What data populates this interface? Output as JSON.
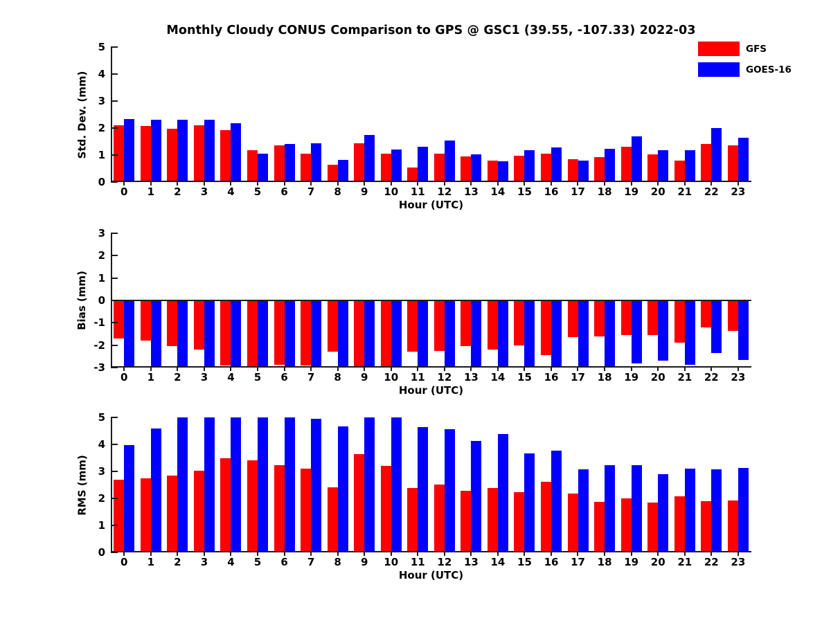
{
  "title": "Monthly Cloudy CONUS Comparison to GPS @ GSC1 (39.55, -107.33) 2022-03",
  "legend": [
    {
      "label": "GFS",
      "color": "#ff0000"
    },
    {
      "label": "GOES-16",
      "color": "#0000ff"
    }
  ],
  "colors": {
    "gfs": "#ff0000",
    "goes16": "#0000ff",
    "axis": "#1a1a1a"
  },
  "hours": [
    "0",
    "1",
    "2",
    "3",
    "4",
    "5",
    "6",
    "7",
    "8",
    "9",
    "10",
    "11",
    "12",
    "13",
    "14",
    "15",
    "16",
    "17",
    "18",
    "19",
    "20",
    "21",
    "22",
    "23"
  ],
  "chart_data": [
    {
      "type": "bar",
      "id": "stddev",
      "ylabel": "Std. Dev. (mm)",
      "xlabel": "Hour (UTC)",
      "ylim": [
        0,
        5
      ],
      "yticks": [
        0,
        1,
        2,
        3,
        4,
        5
      ],
      "categories": [
        "0",
        "1",
        "2",
        "3",
        "4",
        "5",
        "6",
        "7",
        "8",
        "9",
        "10",
        "11",
        "12",
        "13",
        "14",
        "15",
        "16",
        "17",
        "18",
        "19",
        "20",
        "21",
        "22",
        "23"
      ],
      "series": [
        {
          "name": "GFS",
          "color": "#ff0000",
          "values": [
            2.1,
            2.07,
            1.98,
            2.1,
            1.93,
            1.17,
            1.36,
            1.04,
            0.64,
            1.44,
            1.05,
            0.55,
            1.05,
            0.96,
            0.8,
            0.97,
            1.06,
            0.86,
            0.92,
            1.3,
            1.03,
            0.79,
            1.42,
            1.37
          ]
        },
        {
          "name": "GOES-16",
          "color": "#0000ff",
          "values": [
            2.34,
            2.3,
            2.3,
            2.3,
            2.18,
            1.06,
            1.42,
            1.44,
            0.81,
            1.74,
            1.21,
            1.32,
            1.55,
            1.02,
            0.77,
            1.19,
            1.29,
            0.79,
            1.22,
            1.69,
            1.18,
            1.18,
            2.0,
            1.64
          ]
        }
      ]
    },
    {
      "type": "bar",
      "id": "bias",
      "ylabel": "Bias (mm)",
      "xlabel": "Hour (UTC)",
      "ylim": [
        -3,
        3
      ],
      "yticks": [
        -3,
        -2,
        -1,
        0,
        1,
        2,
        3
      ],
      "categories": [
        "0",
        "1",
        "2",
        "3",
        "4",
        "5",
        "6",
        "7",
        "8",
        "9",
        "10",
        "11",
        "12",
        "13",
        "14",
        "15",
        "16",
        "17",
        "18",
        "19",
        "20",
        "21",
        "22",
        "23"
      ],
      "series": [
        {
          "name": "GFS",
          "color": "#ff0000",
          "values": [
            -1.71,
            -1.8,
            -2.05,
            -2.18,
            -2.9,
            -2.95,
            -2.87,
            -2.92,
            -2.28,
            -3.0,
            -3.0,
            -2.28,
            -2.25,
            -2.05,
            -2.2,
            -2.0,
            -2.45,
            -1.65,
            -1.6,
            -1.55,
            -1.55,
            -1.9,
            -1.2,
            -1.35
          ]
        },
        {
          "name": "GOES-16",
          "color": "#0000ff",
          "values": [
            -3.0,
            -3.0,
            -3.0,
            -3.0,
            -3.0,
            -3.0,
            -3.0,
            -3.0,
            -3.0,
            -3.0,
            -3.0,
            -3.0,
            -3.0,
            -3.0,
            -3.0,
            -3.0,
            -3.0,
            -3.0,
            -3.0,
            -2.8,
            -2.7,
            -2.87,
            -2.35,
            -2.65
          ]
        }
      ]
    },
    {
      "type": "bar",
      "id": "rms",
      "ylabel": "RMS (mm)",
      "xlabel": "Hour (UTC)",
      "ylim": [
        0,
        5
      ],
      "yticks": [
        0,
        1,
        2,
        3,
        4,
        5
      ],
      "categories": [
        "0",
        "1",
        "2",
        "3",
        "4",
        "5",
        "6",
        "7",
        "8",
        "9",
        "10",
        "11",
        "12",
        "13",
        "14",
        "15",
        "16",
        "17",
        "18",
        "19",
        "20",
        "21",
        "22",
        "23"
      ],
      "series": [
        {
          "name": "GFS",
          "color": "#ff0000",
          "values": [
            2.7,
            2.75,
            2.86,
            3.03,
            3.5,
            3.4,
            3.22,
            3.1,
            2.4,
            3.63,
            3.2,
            2.38,
            2.51,
            2.28,
            2.38,
            2.22,
            2.62,
            2.17,
            1.88,
            2.0,
            1.86,
            2.08,
            1.89,
            1.92
          ]
        },
        {
          "name": "GOES-16",
          "color": "#0000ff",
          "values": [
            3.97,
            4.58,
            5.0,
            5.0,
            5.0,
            5.0,
            5.0,
            4.94,
            4.68,
            5.0,
            5.0,
            4.64,
            4.56,
            4.14,
            4.38,
            3.68,
            3.77,
            3.09,
            3.22,
            3.24,
            2.9,
            3.1,
            3.08,
            3.14
          ]
        }
      ]
    }
  ]
}
